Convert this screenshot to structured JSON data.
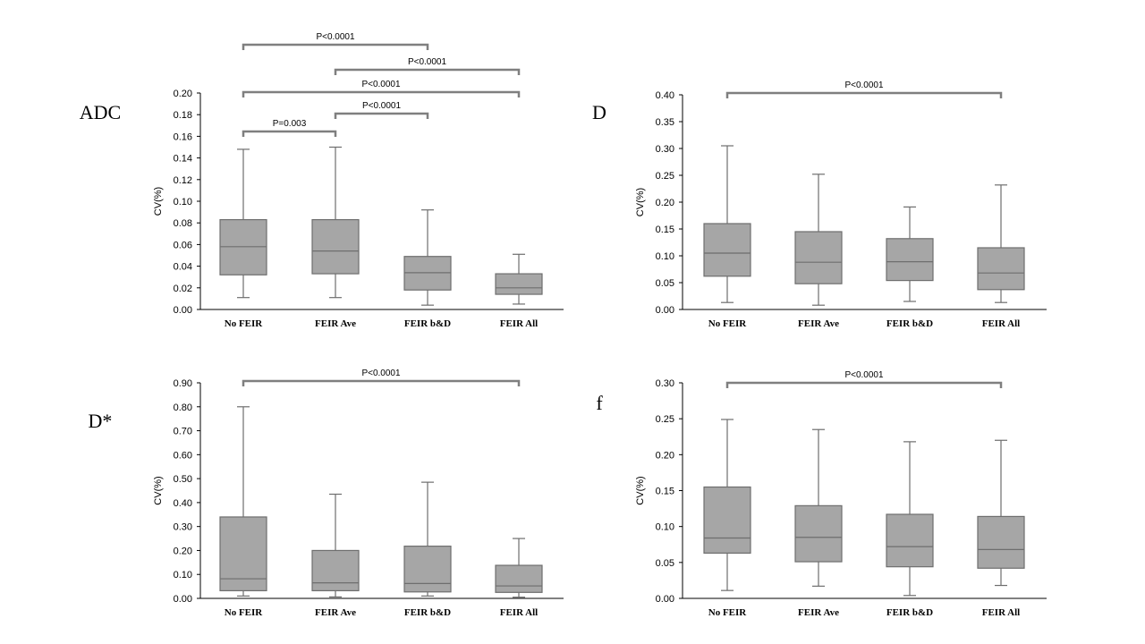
{
  "colors": {
    "box_fill": "#a6a6a6",
    "box_stroke": "#6e6e6e",
    "bracket": "#7f7f7f",
    "axis": "#000000"
  },
  "chart_data": [
    {
      "type": "box",
      "panel_label": "ADC",
      "ylabel": "CV(%)",
      "categories": [
        "No FEIR",
        "FEIR Ave",
        "FEIR b&D",
        "FEIR All"
      ],
      "ylim": [
        0,
        0.2
      ],
      "yticks": [
        "0.00",
        "0.02",
        "0.04",
        "0.06",
        "0.08",
        "0.10",
        "0.12",
        "0.14",
        "0.16",
        "0.18",
        "0.20"
      ],
      "boxes": [
        {
          "min": 0.011,
          "q1": 0.032,
          "median": 0.058,
          "q3": 0.083,
          "max": 0.148
        },
        {
          "min": 0.011,
          "q1": 0.033,
          "median": 0.054,
          "q3": 0.083,
          "max": 0.15
        },
        {
          "min": 0.004,
          "q1": 0.018,
          "median": 0.034,
          "q3": 0.049,
          "max": 0.092
        },
        {
          "min": 0.005,
          "q1": 0.014,
          "median": 0.02,
          "q3": 0.033,
          "max": 0.051
        }
      ],
      "significance": [
        {
          "from": 0,
          "to": 2,
          "label": "P<0.0001",
          "level": 0
        },
        {
          "from": 1,
          "to": 3,
          "label": "P<0.0001",
          "level": 1
        },
        {
          "from": 0,
          "to": 3,
          "label": "P<0.0001",
          "level": 2
        },
        {
          "from": 1,
          "to": 2,
          "label": "P<0.0001",
          "level": 3
        },
        {
          "from": 0,
          "to": 1,
          "label": "P=0.003",
          "level": 4
        }
      ]
    },
    {
      "type": "box",
      "panel_label": "D",
      "ylabel": "CV(%)",
      "categories": [
        "No FEIR",
        "FEIR Ave",
        "FEIR b&D",
        "FEIR All"
      ],
      "ylim": [
        0,
        0.4
      ],
      "yticks": [
        "0.00",
        "0.05",
        "0.10",
        "0.15",
        "0.20",
        "0.25",
        "0.30",
        "0.35",
        "0.40"
      ],
      "boxes": [
        {
          "min": 0.013,
          "q1": 0.062,
          "median": 0.105,
          "q3": 0.16,
          "max": 0.305
        },
        {
          "min": 0.008,
          "q1": 0.048,
          "median": 0.088,
          "q3": 0.145,
          "max": 0.252
        },
        {
          "min": 0.015,
          "q1": 0.054,
          "median": 0.089,
          "q3": 0.132,
          "max": 0.191
        },
        {
          "min": 0.013,
          "q1": 0.037,
          "median": 0.068,
          "q3": 0.115,
          "max": 0.232
        }
      ],
      "significance": [
        {
          "from": 0,
          "to": 3,
          "label": "P<0.0001",
          "level": 0
        }
      ]
    },
    {
      "type": "box",
      "panel_label": "D*",
      "ylabel": "CV(%)",
      "categories": [
        "No FEIR",
        "FEIR Ave",
        "FEIR b&D",
        "FEIR All"
      ],
      "ylim": [
        0,
        0.9
      ],
      "yticks": [
        "0.00",
        "0.10",
        "0.20",
        "0.30",
        "0.40",
        "0.50",
        "0.60",
        "0.70",
        "0.80",
        "0.90"
      ],
      "boxes": [
        {
          "min": 0.01,
          "q1": 0.032,
          "median": 0.082,
          "q3": 0.34,
          "max": 0.8
        },
        {
          "min": 0.006,
          "q1": 0.032,
          "median": 0.065,
          "q3": 0.2,
          "max": 0.435
        },
        {
          "min": 0.01,
          "q1": 0.027,
          "median": 0.062,
          "q3": 0.218,
          "max": 0.485
        },
        {
          "min": 0.005,
          "q1": 0.025,
          "median": 0.052,
          "q3": 0.138,
          "max": 0.25
        }
      ],
      "significance": [
        {
          "from": 0,
          "to": 3,
          "label": "P<0.0001",
          "level": 0
        }
      ]
    },
    {
      "type": "box",
      "panel_label": "f",
      "ylabel": "CV(%)",
      "categories": [
        "No FEIR",
        "FEIR Ave",
        "FEIR b&D",
        "FEIR All"
      ],
      "ylim": [
        0,
        0.3
      ],
      "yticks": [
        "0.00",
        "0.05",
        "0.10",
        "0.15",
        "0.20",
        "0.25",
        "0.30"
      ],
      "boxes": [
        {
          "min": 0.011,
          "q1": 0.063,
          "median": 0.084,
          "q3": 0.155,
          "max": 0.249
        },
        {
          "min": 0.017,
          "q1": 0.051,
          "median": 0.085,
          "q3": 0.129,
          "max": 0.235
        },
        {
          "min": 0.004,
          "q1": 0.044,
          "median": 0.072,
          "q3": 0.117,
          "max": 0.218
        },
        {
          "min": 0.018,
          "q1": 0.042,
          "median": 0.068,
          "q3": 0.114,
          "max": 0.22
        }
      ],
      "significance": [
        {
          "from": 0,
          "to": 3,
          "label": "P<0.0001",
          "level": 0
        }
      ]
    }
  ]
}
